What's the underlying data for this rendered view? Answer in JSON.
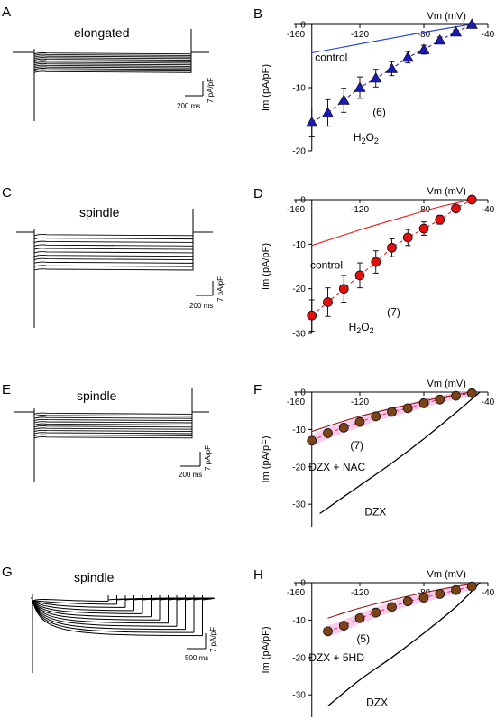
{
  "panels": {
    "A": {
      "letter": "A",
      "title": "elongated",
      "scale_v": "7 pA/pF",
      "scale_h": "200 ms",
      "n_sweeps": 13,
      "final_amp": 12.5,
      "decay": "none"
    },
    "C": {
      "letter": "C",
      "title": "spindle",
      "scale_v": "7 pA/pF",
      "scale_h": "200 ms",
      "n_sweeps": 11,
      "final_amp": 24,
      "decay": "none"
    },
    "E": {
      "letter": "E",
      "title": "spindle",
      "scale_v": "7 pA/pF",
      "scale_h": "200 ms",
      "n_sweeps": 12,
      "final_amp": 12,
      "decay": "none"
    },
    "G": {
      "letter": "G",
      "title": "spindle",
      "scale_v": "7 pA/pF",
      "scale_h": "500 ms",
      "n_sweeps": 12,
      "final_amp": 16,
      "decay": "inactivating"
    }
  },
  "chart_data": [
    {
      "letter": "B",
      "type": "scatter",
      "xlabel": "Vm (mV)",
      "ylabel": "Im (pA/pF)",
      "xlim": [
        -160,
        -40
      ],
      "ylim": [
        -20,
        0
      ],
      "xticks": [
        -160,
        -120,
        -80,
        -40
      ],
      "yticks": [
        0,
        -10,
        -20
      ],
      "marker": "triangle",
      "marker_color": "#1b1bb4",
      "points": [
        {
          "x": -150,
          "y": -15.5,
          "err": 2.3
        },
        {
          "x": -140,
          "y": -14.0,
          "err": 2.1
        },
        {
          "x": -130,
          "y": -12.0,
          "err": 1.9
        },
        {
          "x": -120,
          "y": -10.0,
          "err": 1.7
        },
        {
          "x": -110,
          "y": -8.5,
          "err": 1.4
        },
        {
          "x": -100,
          "y": -7.0,
          "err": 1.1
        },
        {
          "x": -90,
          "y": -5.2,
          "err": 0.9
        },
        {
          "x": -80,
          "y": -4.0,
          "err": 0.7
        },
        {
          "x": -70,
          "y": -2.5,
          "err": 0.5
        },
        {
          "x": -60,
          "y": -1.2,
          "err": 0.3
        },
        {
          "x": -50,
          "y": 0.0,
          "err": 0
        }
      ],
      "fit_color": "#1b1bb4",
      "fit_dashed": true,
      "control_curve": {
        "label": "control",
        "color": "#1f3fd0",
        "points": [
          [
            -150,
            -4.5
          ],
          [
            -120,
            -3.1
          ],
          [
            -90,
            -1.7
          ],
          [
            -70,
            -0.8
          ],
          [
            -50,
            0.0
          ]
        ]
      },
      "dzx_curve": null,
      "annotations": [
        {
          "text": "control",
          "x": -148,
          "y": -5.8
        },
        {
          "text": "(6)",
          "x": -112,
          "y": -14.4
        },
        {
          "text": "H2O2",
          "x": -124,
          "y": -18.4,
          "subscript_two": true
        }
      ]
    },
    {
      "letter": "D",
      "type": "scatter",
      "xlabel": "Vm (mV)",
      "ylabel": "Im (pA/pF)",
      "xlim": [
        -160,
        -40
      ],
      "ylim": [
        -30,
        0
      ],
      "xticks": [
        -160,
        -120,
        -80,
        -40
      ],
      "yticks": [
        0,
        -10,
        -20,
        -30
      ],
      "marker": "circle",
      "marker_color": "#e01010",
      "points": [
        {
          "x": -150,
          "y": -26.0,
          "err": 3.5
        },
        {
          "x": -140,
          "y": -23.0,
          "err": 3.2
        },
        {
          "x": -130,
          "y": -20.0,
          "err": 3.0
        },
        {
          "x": -120,
          "y": -17.0,
          "err": 2.8
        },
        {
          "x": -110,
          "y": -14.0,
          "err": 2.5
        },
        {
          "x": -100,
          "y": -10.8,
          "err": 2.0
        },
        {
          "x": -90,
          "y": -8.5,
          "err": 1.8
        },
        {
          "x": -80,
          "y": -6.5,
          "err": 1.5
        },
        {
          "x": -70,
          "y": -4.5,
          "err": 1.0
        },
        {
          "x": -60,
          "y": -2.0,
          "err": 0.5
        },
        {
          "x": -50,
          "y": 0.0,
          "err": 0
        }
      ],
      "fit_color": "#e01010",
      "fit_dashed": true,
      "control_curve": {
        "label": "control",
        "color": "#e02020",
        "points": [
          [
            -150,
            -10.3
          ],
          [
            -120,
            -6.8
          ],
          [
            -90,
            -3.6
          ],
          [
            -70,
            -1.6
          ],
          [
            -50,
            0.0
          ]
        ]
      },
      "dzx_curve": null,
      "annotations": [
        {
          "text": "control",
          "x": -151,
          "y": -15.5
        },
        {
          "text": "(7)",
          "x": -103,
          "y": -26.0
        },
        {
          "text": "H2O2",
          "x": -127,
          "y": -29.4,
          "subscript_two": true
        }
      ]
    },
    {
      "letter": "F",
      "type": "scatter",
      "xlabel": "Vm (mV)",
      "ylabel": "Im (pA/pF)",
      "xlim": [
        -160,
        -40
      ],
      "ylim": [
        -36,
        0
      ],
      "xticks": [
        -160,
        -120,
        -80,
        -40
      ],
      "yticks": [
        0,
        -10,
        -20,
        -30
      ],
      "marker": "circle",
      "marker_color": "#7a4418",
      "halo": true,
      "points": [
        {
          "x": -150,
          "y": -13.0,
          "err": 0.9
        },
        {
          "x": -140,
          "y": -11.0,
          "err": 0.9
        },
        {
          "x": -130,
          "y": -9.5,
          "err": 0.8
        },
        {
          "x": -120,
          "y": -8.0,
          "err": 0.8
        },
        {
          "x": -110,
          "y": -6.5,
          "err": 0.7
        },
        {
          "x": -100,
          "y": -5.3,
          "err": 0.7
        },
        {
          "x": -90,
          "y": -4.3,
          "err": 0.6
        },
        {
          "x": -80,
          "y": -3.0,
          "err": 0.5
        },
        {
          "x": -70,
          "y": -2.0,
          "err": 0.4
        },
        {
          "x": -60,
          "y": -1.0,
          "err": 0.3
        },
        {
          "x": -50,
          "y": -0.3,
          "err": 0.2
        }
      ],
      "fit_color": "#e03070",
      "fit_dashed": true,
      "control_curve": {
        "label": "",
        "color": "#8b1a1a",
        "points": [
          [
            -150,
            -10.5
          ],
          [
            -120,
            -6.5
          ],
          [
            -90,
            -3.4
          ],
          [
            -70,
            -1.5
          ],
          [
            -50,
            0.0
          ]
        ]
      },
      "dzx_curve": {
        "label": "DZX",
        "color": "#000000",
        "points": [
          [
            -145,
            -32.5
          ],
          [
            -120,
            -25.0
          ],
          [
            -100,
            -19.0
          ],
          [
            -80,
            -12.5
          ],
          [
            -60,
            -5.5
          ],
          [
            -45,
            0.0
          ]
        ]
      },
      "annotations": [
        {
          "text": "(7)",
          "x": -126,
          "y": -15.2
        },
        {
          "text": "DZX + NAC",
          "x": -152,
          "y": -21.0
        },
        {
          "text": "DZX",
          "x": -117,
          "y": -33.0
        }
      ]
    },
    {
      "letter": "H",
      "type": "scatter",
      "xlabel": "Vm (mV)",
      "ylabel": "Im (pA/pF)",
      "xlim": [
        -160,
        -40
      ],
      "ylim": [
        -36,
        0
      ],
      "xticks": [
        -160,
        -120,
        -80,
        -40
      ],
      "yticks": [
        0,
        -10,
        -20,
        -30
      ],
      "marker": "circle",
      "marker_color": "#7a4418",
      "halo": true,
      "points": [
        {
          "x": -140,
          "y": -13.0,
          "err": 0.9
        },
        {
          "x": -130,
          "y": -11.5,
          "err": 0.9
        },
        {
          "x": -120,
          "y": -9.5,
          "err": 0.8
        },
        {
          "x": -110,
          "y": -8.0,
          "err": 0.8
        },
        {
          "x": -100,
          "y": -6.5,
          "err": 0.7
        },
        {
          "x": -90,
          "y": -5.0,
          "err": 0.6
        },
        {
          "x": -80,
          "y": -4.0,
          "err": 0.6
        },
        {
          "x": -70,
          "y": -3.0,
          "err": 0.5
        },
        {
          "x": -60,
          "y": -2.0,
          "err": 0.4
        },
        {
          "x": -50,
          "y": -1.0,
          "err": 0.3
        }
      ],
      "fit_color": "#e03070",
      "fit_dashed": true,
      "control_curve": {
        "label": "",
        "color": "#8b1a1a",
        "points": [
          [
            -140,
            -9.5
          ],
          [
            -120,
            -6.8
          ],
          [
            -90,
            -3.6
          ],
          [
            -70,
            -1.8
          ],
          [
            -50,
            -0.3
          ]
        ]
      },
      "dzx_curve": {
        "label": "DZX",
        "color": "#000000",
        "points": [
          [
            -140,
            -33.0
          ],
          [
            -120,
            -26.0
          ],
          [
            -100,
            -20.0
          ],
          [
            -80,
            -13.5
          ],
          [
            -60,
            -6.5
          ],
          [
            -45,
            0.0
          ]
        ]
      },
      "annotations": [
        {
          "text": "(5)",
          "x": -122,
          "y": -16.0
        },
        {
          "text": "DZX + 5HD",
          "x": -152,
          "y": -21.0
        },
        {
          "text": "DZX",
          "x": -116,
          "y": -33.0
        }
      ]
    }
  ]
}
